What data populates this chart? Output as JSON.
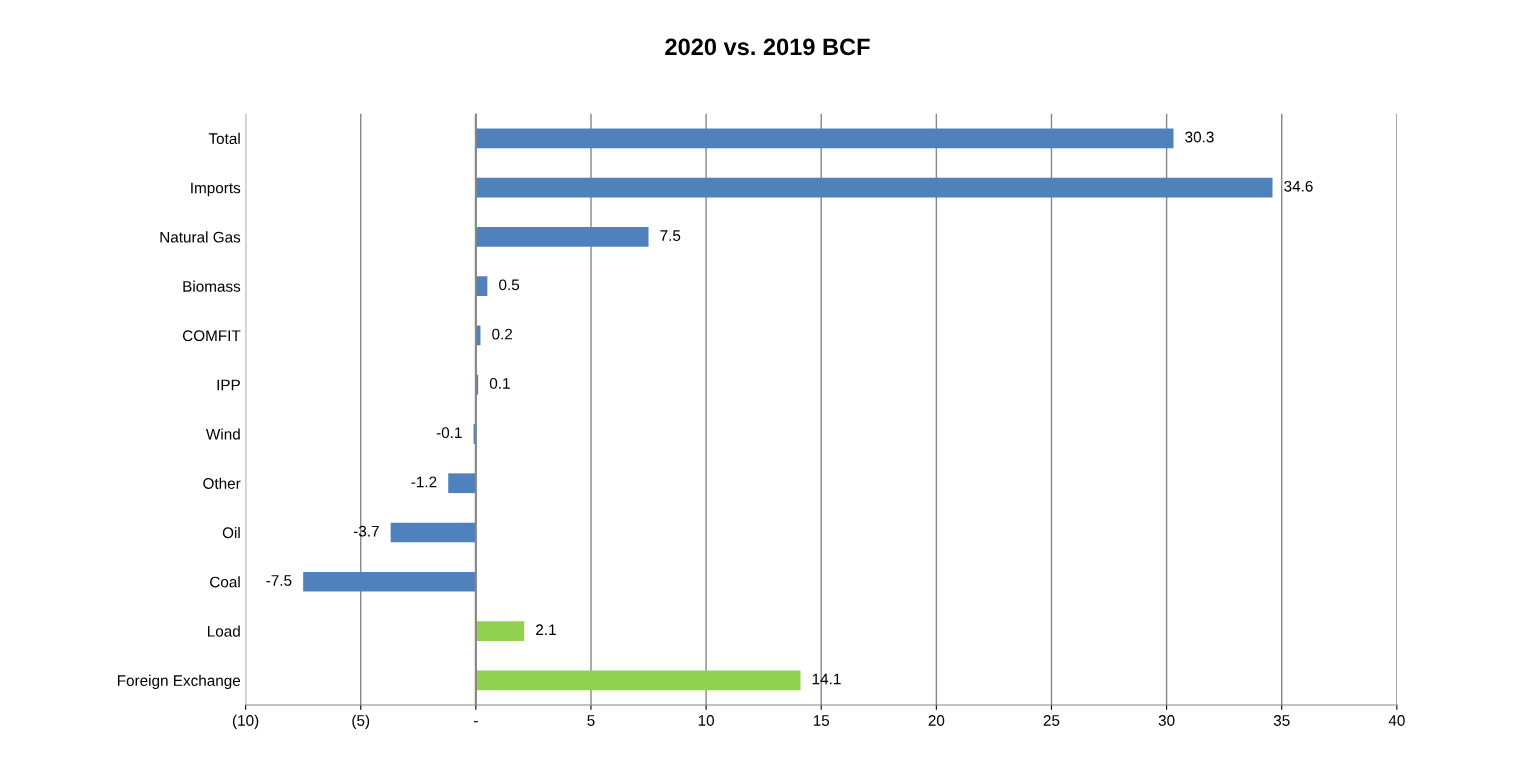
{
  "chart_data": {
    "type": "bar",
    "orientation": "horizontal",
    "title": "2020 vs. 2019 BCF",
    "categories": [
      "Total",
      "Imports",
      "Natural Gas",
      "Biomass",
      "COMFIT",
      "IPP",
      "Wind",
      "Other",
      "Oil",
      "Coal",
      "Load",
      "Foreign Exchange"
    ],
    "values": [
      30.3,
      34.6,
      7.5,
      0.5,
      0.2,
      0.1,
      -0.1,
      -1.2,
      -3.7,
      -7.5,
      2.1,
      14.1
    ],
    "colors": [
      "#4f81bd",
      "#4f81bd",
      "#4f81bd",
      "#4f81bd",
      "#4f81bd",
      "#4f81bd",
      "#4f81bd",
      "#4f81bd",
      "#4f81bd",
      "#4f81bd",
      "#92d050",
      "#92d050"
    ],
    "xlim": [
      -10,
      40
    ],
    "xticks": [
      {
        "value": -10,
        "label": "(10)"
      },
      {
        "value": -5,
        "label": "(5)"
      },
      {
        "value": 0,
        "label": "-"
      },
      5,
      10,
      15,
      20,
      25,
      30,
      35,
      40
    ],
    "grid": "x",
    "data_labels": true
  }
}
